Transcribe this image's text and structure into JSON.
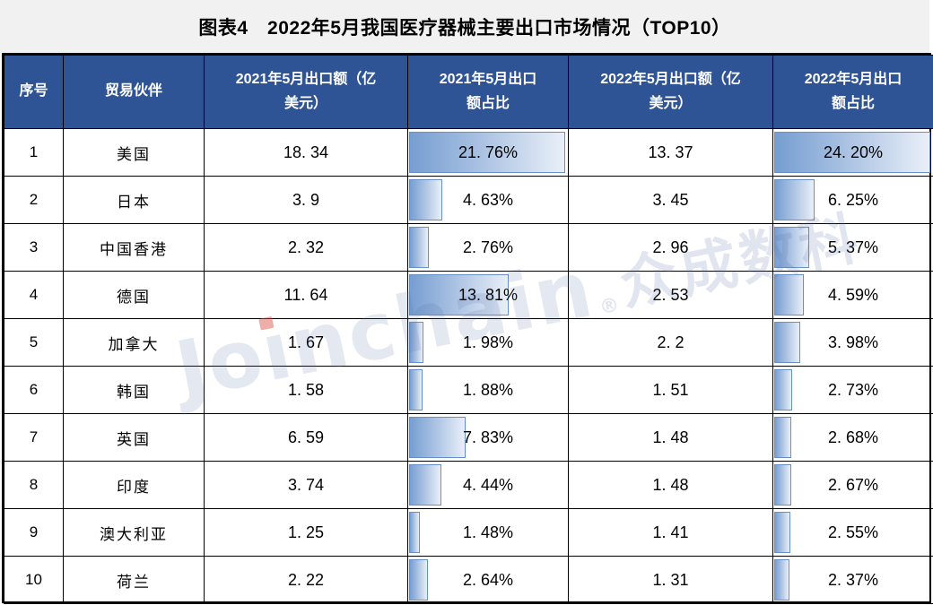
{
  "title": "图表4　2022年5月我国医疗器械主要出口市场情况（TOP10）",
  "watermark": {
    "full_text": "Joinchain®众成数科",
    "brand_prefix": "Jo",
    "brand_i_stem": "ı",
    "brand_suffix": "nchain",
    "registered": "®",
    "brand_cjk": "众成数科"
  },
  "colors": {
    "header_bg": "#2f5496",
    "header_text": "#ffffff",
    "grid": "#000000",
    "title_band_bg": "#f1f1f2",
    "bar_border": "#6890c6",
    "bar_gradient_start": "#769ed1",
    "bar_gradient_end": "#e9eff8",
    "watermark_blue": "rgba(88,110,165,0.17)",
    "watermark_red_dot": "rgba(214,75,65,0.45)"
  },
  "table": {
    "headers": [
      "序号",
      "贸易伙伴",
      "2021年5月出口额（亿\n美元）",
      "2021年5月出口\n额占比",
      "2022年5月出口额（亿\n美元）",
      "2022年5月出口\n额占比"
    ],
    "rows": [
      {
        "no": "1",
        "partner": "美国",
        "export_2021": "18. 34",
        "share_2021": "21. 76%",
        "export_2022": "13. 37",
        "share_2022": "24. 20%"
      },
      {
        "no": "2",
        "partner": "日本",
        "export_2021": "3. 9",
        "share_2021": "4. 63%",
        "export_2022": "3. 45",
        "share_2022": "6. 25%"
      },
      {
        "no": "3",
        "partner": "中国香港",
        "export_2021": "2. 32",
        "share_2021": "2. 76%",
        "export_2022": "2. 96",
        "share_2022": "5. 37%"
      },
      {
        "no": "4",
        "partner": "德国",
        "export_2021": "11. 64",
        "share_2021": "13. 81%",
        "export_2022": "2. 53",
        "share_2022": "4. 59%"
      },
      {
        "no": "5",
        "partner": "加拿大",
        "export_2021": "1. 67",
        "share_2021": "1. 98%",
        "export_2022": "2. 2",
        "share_2022": "3. 98%"
      },
      {
        "no": "6",
        "partner": "韩国",
        "export_2021": "1. 58",
        "share_2021": "1. 88%",
        "export_2022": "1. 51",
        "share_2022": "2. 73%"
      },
      {
        "no": "7",
        "partner": "英国",
        "export_2021": "6. 59",
        "share_2021": "7. 83%",
        "export_2022": "1. 48",
        "share_2022": "2. 68%"
      },
      {
        "no": "8",
        "partner": "印度",
        "export_2021": "3. 74",
        "share_2021": "4. 44%",
        "export_2022": "1. 48",
        "share_2022": "2. 67%"
      },
      {
        "no": "9",
        "partner": "澳大利亚",
        "export_2021": "1. 25",
        "share_2021": "1. 48%",
        "export_2022": "1. 41",
        "share_2022": "2. 55%"
      },
      {
        "no": "10",
        "partner": "荷兰",
        "export_2021": "2. 22",
        "share_2021": "2. 64%",
        "export_2022": "1. 31",
        "share_2022": "2. 37%"
      }
    ]
  },
  "chart_data": {
    "type": "table",
    "title": "图表4 2022年5月我国医疗器械主要出口市场情况（TOP10）",
    "columns": [
      "序号",
      "贸易伙伴",
      "2021年5月出口额（亿美元）",
      "2021年5月出口额占比",
      "2022年5月出口额（亿美元）",
      "2022年5月出口额占比"
    ],
    "categories": [
      "美国",
      "日本",
      "中国香港",
      "德国",
      "加拿大",
      "韩国",
      "英国",
      "印度",
      "澳大利亚",
      "荷兰"
    ],
    "ranks": [
      1,
      2,
      3,
      4,
      5,
      6,
      7,
      8,
      9,
      10
    ],
    "series": [
      {
        "name": "2021年5月出口额（亿美元）",
        "unit": "亿美元",
        "values": [
          18.34,
          3.9,
          2.32,
          11.64,
          1.67,
          1.58,
          6.59,
          3.74,
          1.25,
          2.22
        ]
      },
      {
        "name": "2021年5月出口额占比",
        "unit": "%",
        "databar": true,
        "values": [
          21.76,
          4.63,
          2.76,
          13.81,
          1.98,
          1.88,
          7.83,
          4.44,
          1.48,
          2.64
        ]
      },
      {
        "name": "2022年5月出口额（亿美元）",
        "unit": "亿美元",
        "values": [
          13.37,
          3.45,
          2.96,
          2.53,
          2.2,
          1.51,
          1.48,
          1.48,
          1.41,
          1.31
        ]
      },
      {
        "name": "2022年5月出口额占比",
        "unit": "%",
        "databar": true,
        "values": [
          24.2,
          6.25,
          5.37,
          4.59,
          3.98,
          2.73,
          2.68,
          2.67,
          2.55,
          2.37
        ]
      }
    ]
  }
}
